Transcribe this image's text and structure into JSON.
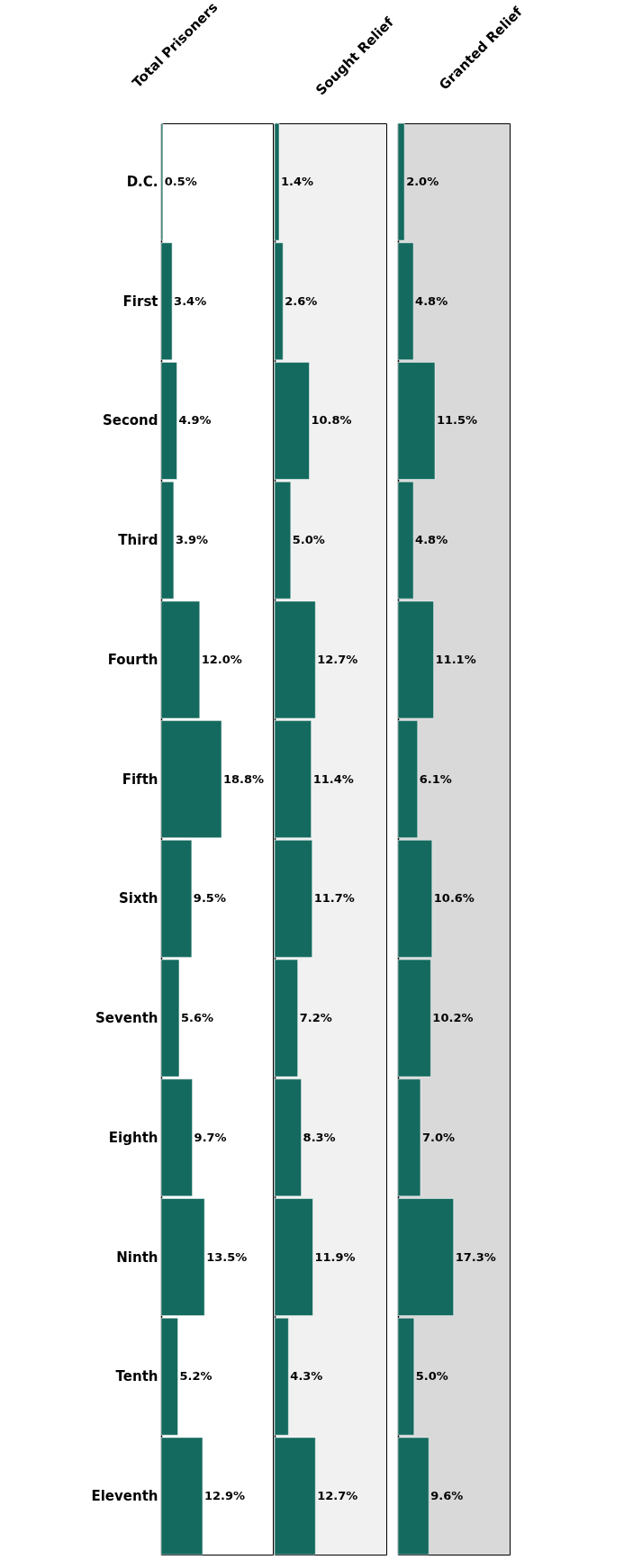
{
  "chart_data": [
    {
      "type": "bar",
      "orientation": "horizontal",
      "title": "Total Prisoners",
      "categories": [
        "D.C.",
        "First",
        "Second",
        "Third",
        "Fourth",
        "Fifth",
        "Sixth",
        "Seventh",
        "Eighth",
        "Ninth",
        "Tenth",
        "Eleventh"
      ],
      "values": [
        0.5,
        3.4,
        4.9,
        3.9,
        12.0,
        18.8,
        9.5,
        5.6,
        9.7,
        13.5,
        5.2,
        12.9
      ],
      "value_labels": [
        "0.5%",
        "3.4%",
        "4.9%",
        "3.9%",
        "12.0%",
        "18.8%",
        "9.5%",
        "5.6%",
        "9.7%",
        "13.5%",
        "5.2%",
        "12.9%"
      ],
      "color": "#146a5e",
      "tick_labels": "y"
    },
    {
      "type": "bar",
      "orientation": "horizontal",
      "title": "Sought Relief",
      "categories": [
        null,
        null,
        null,
        null,
        null,
        null,
        null,
        null,
        null,
        null,
        null,
        null
      ],
      "values": [
        1.4,
        2.6,
        10.8,
        5.0,
        12.7,
        11.4,
        11.7,
        7.2,
        8.3,
        11.9,
        4.3,
        12.7
      ],
      "value_labels": [
        "1.4%",
        "2.6%",
        "10.8%",
        "5.0%",
        "12.7%",
        "11.4%",
        "11.7%",
        "7.2%",
        "8.3%",
        "11.9%",
        "4.3%",
        "12.7%"
      ],
      "color": "#146a5e",
      "tick_labels": false
    },
    {
      "type": "bar",
      "orientation": "horizontal",
      "title": "Granted Relief",
      "categories": [
        null,
        null,
        null,
        null,
        null,
        null,
        null,
        null,
        null,
        null,
        null,
        null
      ],
      "values": [
        2.0,
        4.8,
        11.5,
        4.8,
        11.1,
        6.1,
        10.6,
        10.2,
        7.0,
        17.3,
        5.0,
        9.6
      ],
      "value_labels": [
        "2.0%",
        "4.8%",
        "11.5%",
        "4.8%",
        "11.1%",
        "6.1%",
        "10.6%",
        "10.2%",
        "7.0%",
        "17.3%",
        "5.0%",
        "9.6%"
      ],
      "color": "#146a5e",
      "tick_labels": false
    }
  ]
}
